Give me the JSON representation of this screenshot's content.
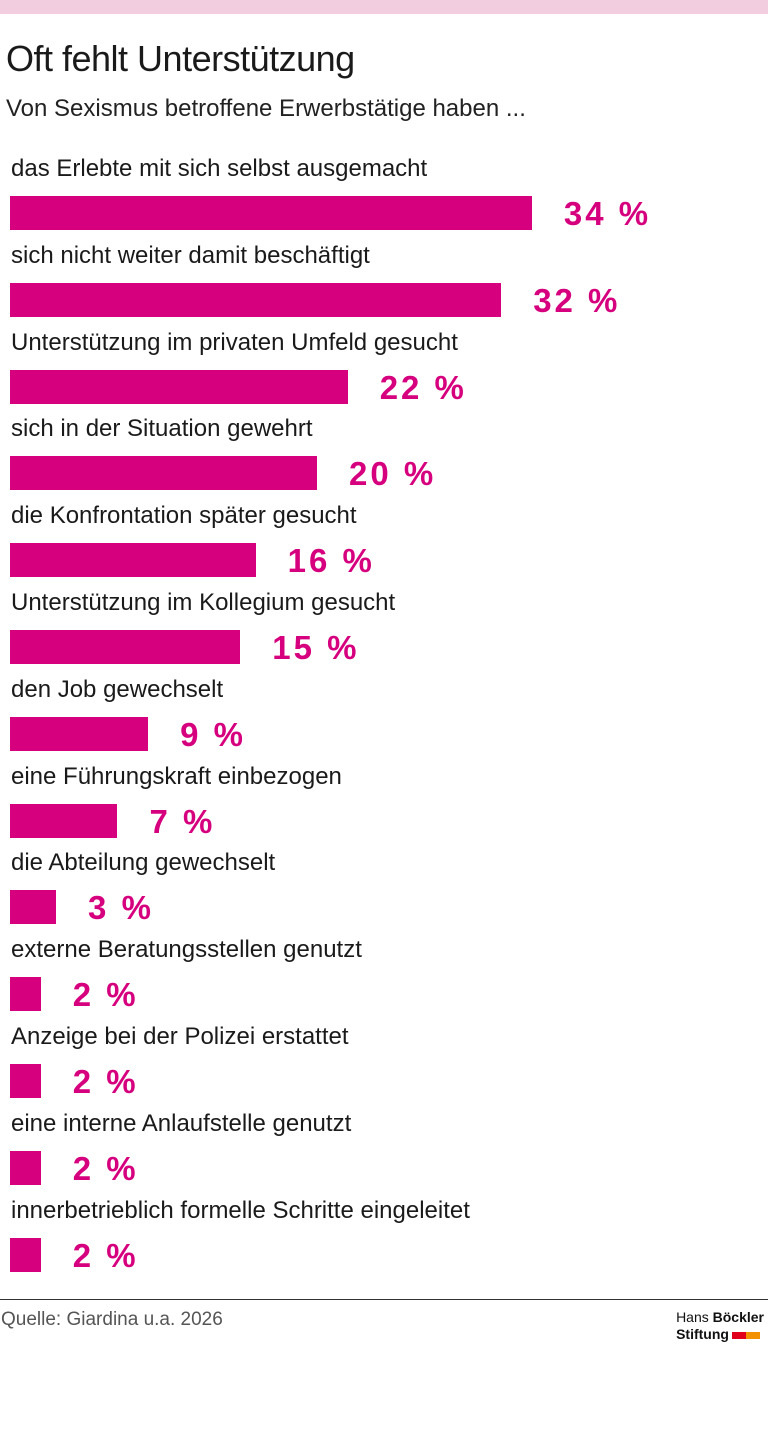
{
  "colors": {
    "accent": "#d6007e",
    "top_band": "#f2cde0"
  },
  "chart_data": {
    "type": "bar",
    "orientation": "horizontal",
    "title": "Oft fehlt Unterstützung",
    "subtitle": "Von Sexismus betroffene Erwerbstätige haben ...",
    "unit": "%",
    "categories": [
      "das Erlebte mit sich selbst ausgemacht",
      "sich nicht weiter damit beschäftigt",
      "Unterstützung im privaten Umfeld gesucht",
      "sich in der Situation gewehrt",
      "die Konfrontation später gesucht",
      "Unterstützung im Kollegium gesucht",
      "den Job gewechselt",
      "eine Führungskraft einbezogen",
      "die Abteilung gewechselt",
      "externe Beratungsstellen genutzt",
      "Anzeige bei der Polizei erstattet",
      "eine interne Anlaufstelle genutzt",
      "innerbetrieblich formelle Schritte eingeleitet"
    ],
    "values": [
      34,
      32,
      22,
      20,
      16,
      15,
      9,
      7,
      3,
      2,
      2,
      2,
      2
    ],
    "value_labels": [
      "34 %",
      "32 %",
      "22 %",
      "20 %",
      "16 %",
      "15 %",
      "9 %",
      "7 %",
      "3 %",
      "2 %",
      "2 %",
      "2 %",
      "2 %"
    ],
    "grid": false,
    "legend": "none"
  },
  "footer": {
    "source": "Quelle: Giardina u.a. 2026",
    "logo_line1_regular": "Hans ",
    "logo_line1_bold": "Böckler",
    "logo_line2": "Stiftung"
  }
}
